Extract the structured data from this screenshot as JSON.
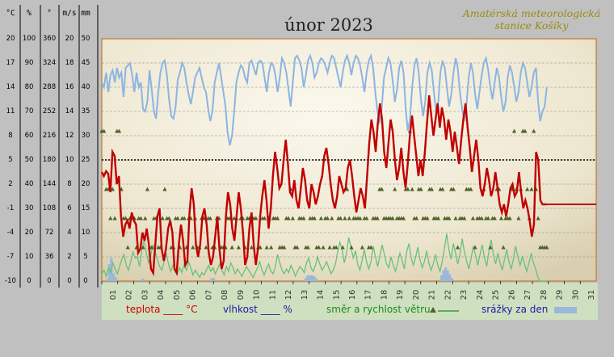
{
  "chart_data": {
    "type": "line",
    "title": "únor 2023",
    "station": [
      "Amatérská meteorologická",
      "stanice Košíky"
    ],
    "axes": [
      {
        "unit": "°C",
        "ticks": [
          20,
          17,
          14,
          11,
          8,
          5,
          2,
          -1,
          -4,
          -7,
          -10
        ]
      },
      {
        "unit": "%",
        "ticks": [
          100,
          90,
          80,
          70,
          60,
          50,
          40,
          30,
          20,
          10,
          0
        ]
      },
      {
        "unit": "°",
        "ticks": [
          360,
          324,
          288,
          252,
          216,
          180,
          144,
          108,
          72,
          36,
          0
        ]
      },
      {
        "unit": "m/s",
        "ticks": [
          20,
          18,
          16,
          14,
          12,
          10,
          8,
          6,
          4,
          2,
          0
        ]
      },
      {
        "unit": "mm",
        "ticks": [
          50,
          45,
          40,
          35,
          30,
          25,
          20,
          15,
          10,
          5,
          0
        ]
      }
    ],
    "x_categories": [
      "01",
      "02",
      "03",
      "04",
      "05",
      "06",
      "07",
      "08",
      "09",
      "10",
      "11",
      "12",
      "13",
      "14",
      "15",
      "16",
      "17",
      "18",
      "19",
      "20",
      "21",
      "22",
      "23",
      "24",
      "25",
      "26",
      "27",
      "28",
      "29",
      "30",
      "31"
    ],
    "reference_line": {
      "temperature": 5
    },
    "legend": {
      "temperature": "teplota ____ °C",
      "humidity": "vlhkost ____ %",
      "wind": "směr a rychlost větru",
      "precip": "srážky za den"
    },
    "colors": {
      "temperature": "#c00000",
      "humidity": "#8cb4e2",
      "wind": "#66c27a",
      "wind_dir": "#4f6228",
      "precip": "#9ab8dc",
      "axis": "#c07a30"
    },
    "temperature": [
      3.5,
      3.0,
      3.6,
      3.3,
      1.0,
      6.0,
      5.5,
      2.0,
      3.0,
      -2.0,
      -4.5,
      -3.0,
      -2.5,
      -3.5,
      -1.5,
      -2.5,
      -3.0,
      -6.5,
      -6.0,
      -4.0,
      -5.0,
      -3.5,
      -5.5,
      -8.5,
      -9.0,
      -5.5,
      -2.0,
      -1.0,
      -6.0,
      -7.5,
      -6.0,
      -3.5,
      -2.5,
      -4.0,
      -8.5,
      -9.0,
      -5.5,
      -3.0,
      -5.0,
      -8.0,
      -7.5,
      -1.5,
      1.5,
      -0.5,
      -5.5,
      -7.0,
      -5.5,
      -2.0,
      -1.0,
      -3.0,
      -6.5,
      -8.0,
      -7.0,
      -4.5,
      -2.0,
      -6.0,
      -8.5,
      -7.5,
      -2.0,
      1.0,
      -0.5,
      -3.5,
      -5.0,
      -2.0,
      1.0,
      -1.0,
      -4.0,
      -8.0,
      -7.0,
      -3.5,
      -1.5,
      -5.5,
      -8.0,
      -6.0,
      -2.0,
      0.5,
      2.5,
      0.0,
      -3.5,
      -1.0,
      3.0,
      6.0,
      4.0,
      1.5,
      2.0,
      5.0,
      7.5,
      4.5,
      1.0,
      0.5,
      2.5,
      0.0,
      -1.0,
      1.5,
      4.0,
      2.5,
      0.0,
      -1.0,
      2.0,
      1.0,
      -0.5,
      0.5,
      2.0,
      3.0,
      5.5,
      6.5,
      4.5,
      2.0,
      0.0,
      -1.0,
      0.5,
      3.0,
      2.0,
      1.0,
      1.5,
      4.0,
      5.0,
      3.0,
      0.5,
      -1.5,
      0.0,
      1.5,
      0.5,
      -1.0,
      3.0,
      7.0,
      10.0,
      8.5,
      6.0,
      9.5,
      12.0,
      10.0,
      6.0,
      4.0,
      7.0,
      10.0,
      8.5,
      5.0,
      2.5,
      4.0,
      6.5,
      3.5,
      1.5,
      4.5,
      8.0,
      10.5,
      8.0,
      5.5,
      3.0,
      5.0,
      3.0,
      6.0,
      9.5,
      13.0,
      10.5,
      8.0,
      10.0,
      12.0,
      9.0,
      11.5,
      10.0,
      7.5,
      10.0,
      8.5,
      6.0,
      8.5,
      6.5,
      4.5,
      7.5,
      10.0,
      12.0,
      9.0,
      6.5,
      3.5,
      5.5,
      7.5,
      5.0,
      1.5,
      0.5,
      2.0,
      4.0,
      2.5,
      0.5,
      1.5,
      3.5,
      1.5,
      -0.5,
      -1.5,
      -0.5,
      -2.0,
      -0.5,
      1.5,
      2.0,
      0.5,
      1.0,
      3.5,
      1.0,
      -1.0,
      0.0,
      -1.0,
      -2.5,
      -4.5,
      -3.0,
      6.0,
      5.0,
      0.0,
      -0.5,
      -0.5,
      -0.5
    ],
    "humidity": [
      82,
      80,
      86,
      78,
      85,
      87,
      82,
      88,
      84,
      86,
      76,
      88,
      89,
      90,
      85,
      78,
      86,
      80,
      82,
      71,
      70,
      74,
      87,
      79,
      70,
      67,
      78,
      86,
      90,
      91,
      85,
      75,
      68,
      67,
      72,
      83,
      86,
      90,
      88,
      82,
      77,
      73,
      78,
      84,
      86,
      88,
      84,
      80,
      78,
      71,
      66,
      70,
      82,
      86,
      90,
      84,
      78,
      72,
      61,
      56,
      60,
      70,
      82,
      86,
      89,
      88,
      84,
      82,
      90,
      91,
      88,
      85,
      90,
      91,
      90,
      84,
      78,
      86,
      90,
      89,
      85,
      78,
      84,
      92,
      90,
      86,
      79,
      72,
      82,
      92,
      93,
      91,
      88,
      80,
      85,
      91,
      93,
      90,
      84,
      86,
      90,
      92,
      91,
      89,
      86,
      90,
      93,
      92,
      88,
      84,
      80,
      86,
      91,
      93,
      90,
      85,
      90,
      93,
      92,
      89,
      84,
      78,
      86,
      91,
      93,
      88,
      78,
      70,
      65,
      72,
      84,
      88,
      92,
      90,
      83,
      74,
      79,
      88,
      91,
      86,
      71,
      62,
      67,
      80,
      89,
      92,
      86,
      75,
      68,
      74,
      86,
      90,
      87,
      78,
      70,
      74,
      86,
      91,
      88,
      80,
      72,
      77,
      86,
      92,
      88,
      78,
      71,
      66,
      73,
      84,
      90,
      86,
      77,
      71,
      78,
      85,
      90,
      92,
      87,
      80,
      75,
      82,
      88,
      84,
      76,
      70,
      74,
      84,
      89,
      86,
      80,
      74,
      78,
      86,
      90,
      88,
      82,
      76,
      80,
      86,
      88,
      74,
      66,
      70,
      72,
      80
    ],
    "wind": [
      0.6,
      0.9,
      0.4,
      1.1,
      0.7,
      1.5,
      1.0,
      0.6,
      1.2,
      1.8,
      2.2,
      1.3,
      0.9,
      1.6,
      2.4,
      1.9,
      2.0,
      1.2,
      2.6,
      3.4,
      2.3,
      1.5,
      2.1,
      3.0,
      2.4,
      1.8,
      1.2,
      0.9,
      1.6,
      2.2,
      1.4,
      0.8,
      1.3,
      1.0,
      0.6,
      1.1,
      0.7,
      1.4,
      0.9,
      1.6,
      1.1,
      0.5,
      0.9,
      0.6,
      0.3,
      0.7,
      0.5,
      0.9,
      1.3,
      0.8,
      1.1,
      0.6,
      1.0,
      1.4,
      0.9,
      0.5,
      1.2,
      0.8,
      1.5,
      1.1,
      0.6,
      1.0,
      0.7,
      0.4,
      0.8,
      1.2,
      0.9,
      0.6,
      0.3,
      0.7,
      1.1,
      1.6,
      0.9,
      0.5,
      1.0,
      1.4,
      0.8,
      0.6,
      1.2,
      2.2,
      1.5,
      0.9,
      0.6,
      1.0,
      0.7,
      1.3,
      0.9,
      0.4,
      0.8,
      1.2,
      1.0,
      0.7,
      1.5,
      1.9,
      1.1,
      0.8,
      1.3,
      2.0,
      1.4,
      0.9,
      1.2,
      1.6,
      1.1,
      0.6,
      0.9,
      1.4,
      2.4,
      3.2,
      2.6,
      1.5,
      2.3,
      3.6,
      2.8,
      1.9,
      2.5,
      1.4,
      0.9,
      1.7,
      2.6,
      1.6,
      1.0,
      1.6,
      2.9,
      2.0,
      1.2,
      2.1,
      3.0,
      2.2,
      1.4,
      1.1,
      2.0,
      1.3,
      0.8,
      1.5,
      2.3,
      1.7,
      1.0,
      2.4,
      3.1,
      2.0,
      1.3,
      1.9,
      2.8,
      1.8,
      1.1,
      1.6,
      2.5,
      1.5,
      0.9,
      1.4,
      2.2,
      1.3,
      0.8,
      1.6,
      2.7,
      3.9,
      2.6,
      1.8,
      3.1,
      2.3,
      1.4,
      2.2,
      3.5,
      2.4,
      1.6,
      1.0,
      1.9,
      2.9,
      2.1,
      1.3,
      2.2,
      3.0,
      1.9,
      1.2,
      2.5,
      3.4,
      2.2,
      1.4,
      2.3,
      1.5,
      0.9,
      1.8,
      2.6,
      1.6,
      1.0,
      1.8,
      2.9,
      2.0,
      1.3,
      2.0,
      1.4,
      0.8,
      1.5,
      2.3,
      1.5,
      1.0,
      0.3,
      0.0,
      0.0,
      0.0,
      0.0
    ],
    "wind_dir": [
      3,
      3,
      2,
      2,
      1,
      2,
      1,
      3,
      3,
      2,
      1,
      1,
      0,
      1,
      1,
      1,
      0,
      1,
      1,
      0,
      1,
      2,
      0,
      0,
      1,
      1,
      0,
      0,
      1,
      2,
      1,
      1,
      0,
      0,
      1,
      1,
      0,
      1,
      1,
      0,
      1,
      1,
      0,
      1,
      0,
      0,
      1,
      1,
      0,
      1,
      1,
      0,
      0,
      1,
      1,
      0,
      0,
      0,
      1,
      1,
      0,
      1,
      1,
      0,
      1,
      1,
      0,
      1,
      1,
      0,
      1,
      1,
      0,
      0,
      1,
      1,
      0,
      1,
      0,
      1,
      1,
      1,
      0,
      0,
      0,
      1,
      1,
      2,
      1,
      0,
      0,
      1,
      1,
      1,
      0,
      0,
      1,
      1,
      1,
      0,
      0,
      1,
      0,
      1,
      1,
      0,
      1,
      0,
      0,
      1,
      1,
      0,
      1,
      2,
      1,
      0,
      1,
      1,
      1,
      1,
      0,
      1,
      1,
      0,
      0,
      1,
      1,
      1,
      2,
      2,
      1,
      1,
      1,
      1,
      1,
      2,
      1,
      1,
      1,
      1,
      2,
      2,
      3,
      2,
      1,
      1,
      2,
      2,
      1,
      1,
      1,
      2,
      2,
      1,
      1,
      1,
      2,
      2,
      1,
      1,
      1,
      2,
      2,
      1,
      0,
      1,
      1,
      1,
      2,
      2,
      2,
      1,
      0,
      1,
      1,
      1,
      2,
      1,
      1,
      0,
      1,
      1,
      2,
      2,
      1,
      0,
      1,
      1,
      1,
      2,
      3,
      2,
      1,
      2,
      3,
      3,
      2,
      1,
      2,
      3,
      2,
      1,
      0,
      0,
      0,
      0
    ],
    "precip": [
      0,
      0,
      0.4,
      3.5,
      4.8,
      1.6,
      0.8,
      0,
      0,
      0,
      0,
      0,
      0,
      0,
      0,
      0,
      0,
      0,
      0,
      0.5,
      0,
      0,
      0,
      0,
      0,
      0,
      0,
      0,
      0,
      0,
      0,
      0,
      0,
      0,
      0,
      0,
      0,
      0,
      0,
      0,
      0,
      0,
      0,
      0,
      0,
      0,
      0,
      0,
      0,
      0,
      0,
      0,
      0.6,
      0.6,
      0,
      0,
      0,
      0,
      0,
      0,
      0,
      0,
      0,
      0,
      0,
      0,
      0,
      0,
      0,
      0,
      0,
      0,
      0,
      0,
      0,
      0,
      0,
      0,
      0,
      0,
      0,
      0,
      0,
      0,
      0,
      0,
      0,
      0,
      0,
      0,
      0,
      0,
      0,
      0,
      0,
      0,
      0,
      0.6,
      1.2,
      1.2,
      1.2,
      1.0,
      0.6,
      0,
      0,
      0,
      0,
      0,
      0,
      0,
      0,
      0,
      0,
      0,
      0,
      0,
      0,
      0,
      0,
      0,
      0,
      0,
      0,
      0,
      0,
      0,
      0,
      0,
      0,
      0,
      0,
      0,
      0,
      0,
      0,
      0,
      0,
      0,
      0,
      0,
      0,
      0,
      0,
      0,
      0,
      0,
      0,
      0,
      0,
      0,
      0,
      0,
      0,
      0,
      0,
      0,
      0,
      0,
      0,
      0,
      0,
      0,
      1.2,
      2.2,
      2.8,
      2.2,
      1.4,
      0.6,
      0,
      0,
      0,
      0,
      0,
      0,
      0,
      0,
      0,
      0,
      0,
      0,
      0,
      0,
      0,
      0,
      0,
      0,
      0,
      0,
      0,
      0,
      0,
      0,
      0,
      0,
      0,
      0,
      0,
      0,
      0,
      0,
      0,
      0,
      0,
      0,
      0,
      0,
      0,
      0,
      0,
      0,
      0,
      0,
      0,
      0
    ],
    "ylim_temperature": [
      -10,
      20
    ],
    "ylim_humidity": [
      0,
      100
    ]
  }
}
